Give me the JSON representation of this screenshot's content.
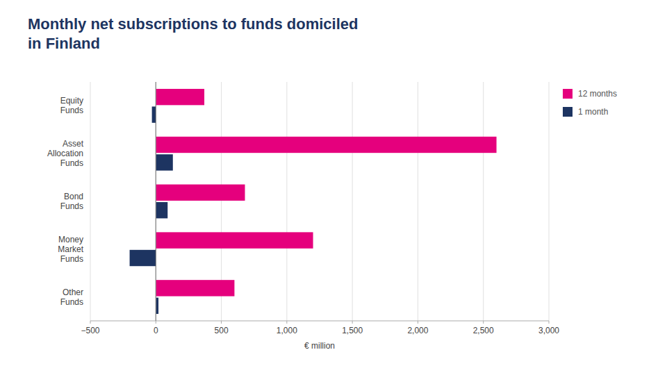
{
  "chart_data": {
    "type": "bar",
    "orientation": "horizontal",
    "title": "Monthly net subscriptions to funds domiciled\nin Finland",
    "categories": [
      "Equity\nFunds",
      "Asset\nAllocation\nFunds",
      "Bond\nFunds",
      "Money\nMarket\nFunds",
      "Other\nFunds"
    ],
    "series": [
      {
        "name": "12 months",
        "color": "#e5007d",
        "values": [
          370,
          2600,
          680,
          1200,
          600
        ]
      },
      {
        "name": "1 month",
        "color": "#1d3461",
        "values": [
          -30,
          130,
          90,
          -200,
          20
        ]
      }
    ],
    "xlabel": "€ million",
    "xlim": [
      -500,
      3000
    ],
    "xticks": [
      {
        "value": -500,
        "label": "−500"
      },
      0,
      500,
      {
        "value": 1000,
        "label": "1,000"
      },
      {
        "value": 1500,
        "label": "1,500"
      },
      {
        "value": 2000,
        "label": "2,000"
      },
      {
        "value": 2500,
        "label": "2,500"
      },
      {
        "value": 3000,
        "label": "3,000"
      }
    ],
    "grid": true,
    "legend": "right"
  }
}
